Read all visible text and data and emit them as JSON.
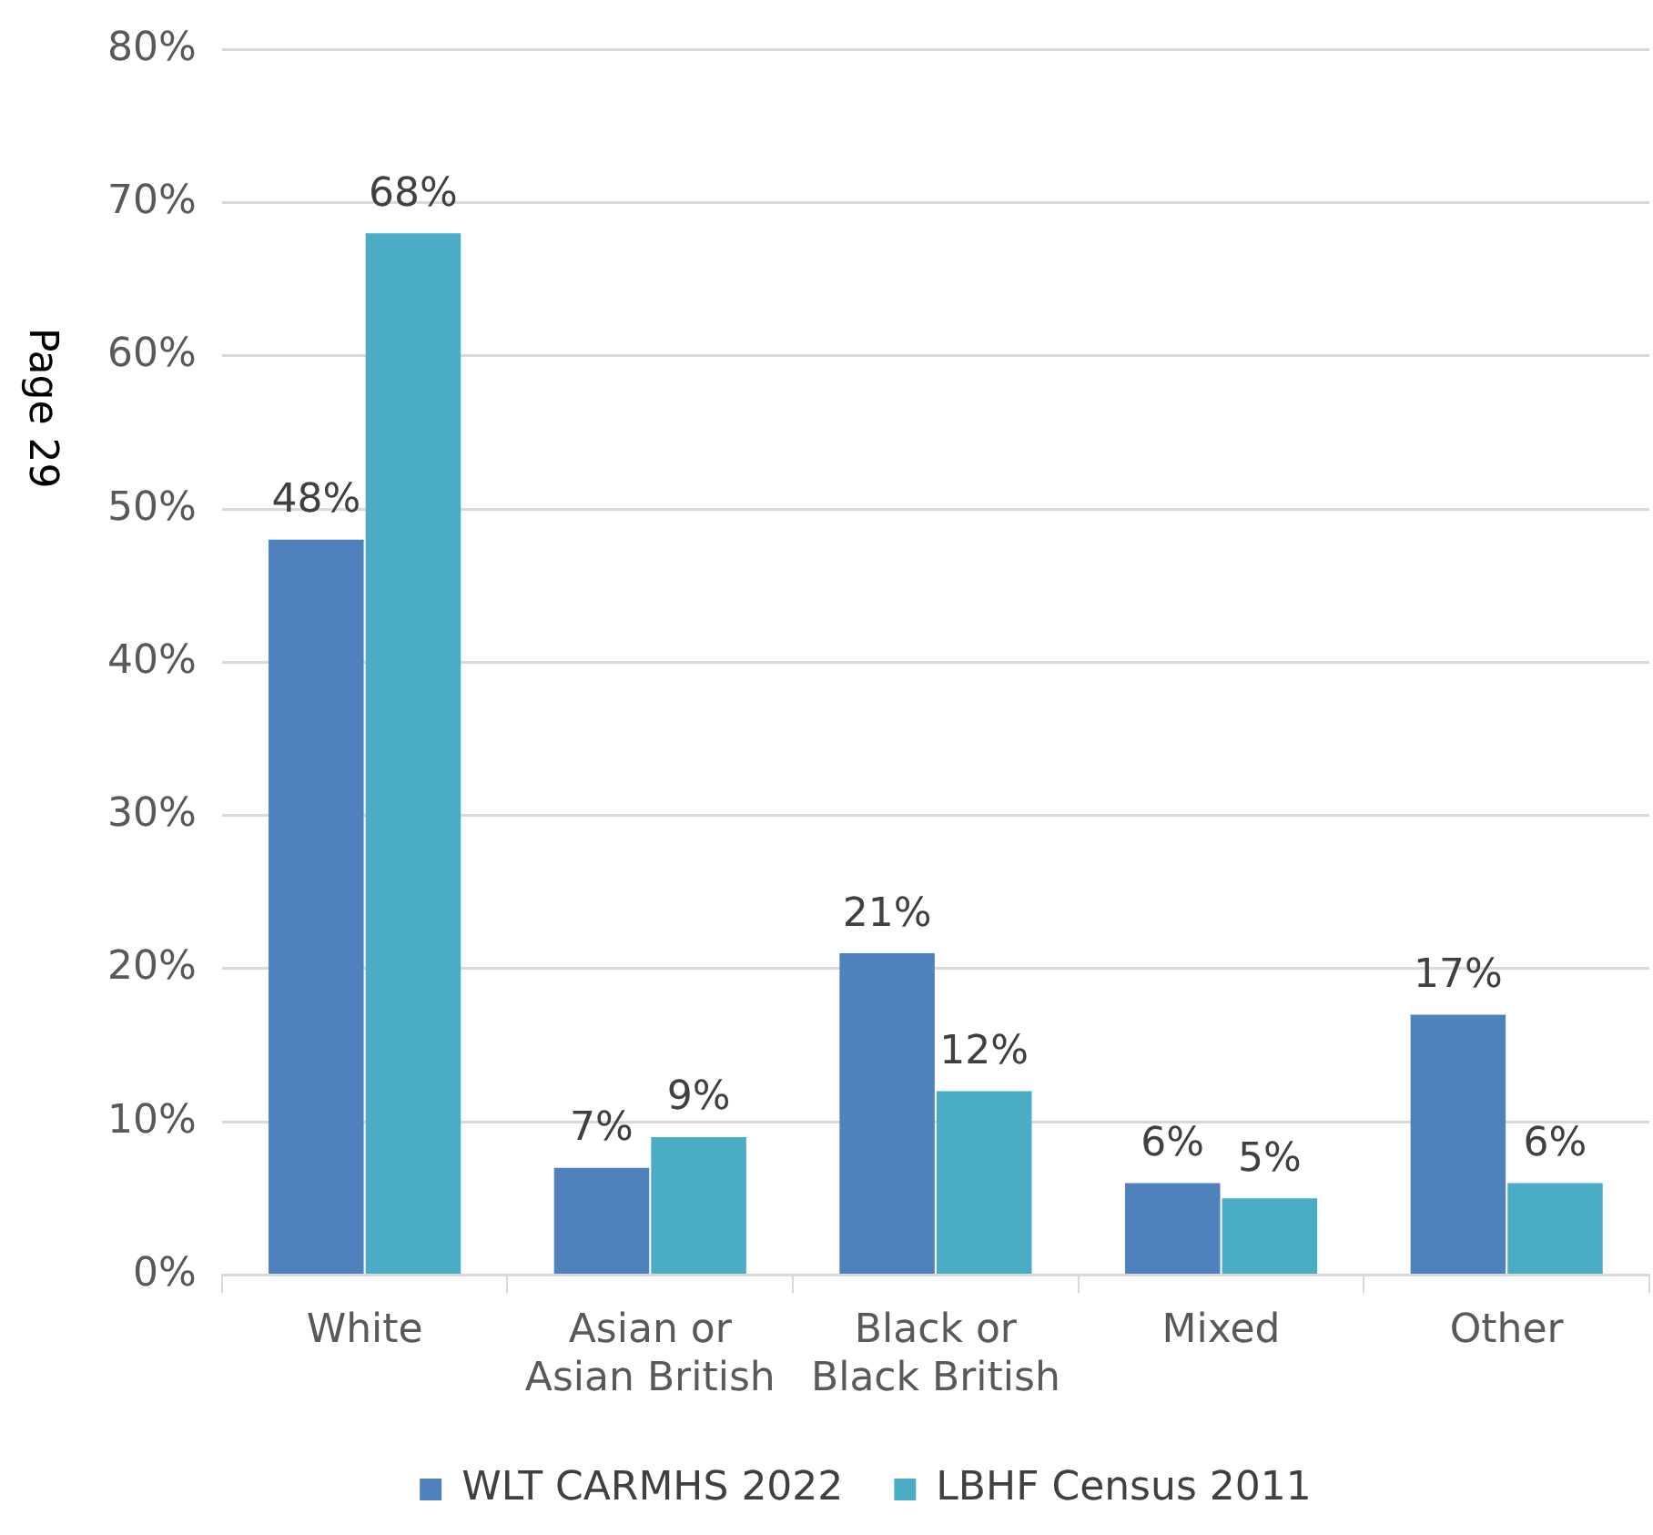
{
  "chart_data": {
    "type": "bar",
    "categories": [
      "White",
      "Asian or Asian British",
      "Black or Black British",
      "Mixed",
      "Other"
    ],
    "series": [
      {
        "name": "WLT CARMHS 2022",
        "color": "#4f81bd",
        "values": [
          48,
          7,
          21,
          6,
          17
        ],
        "value_labels": [
          "48%",
          "7%",
          "21%",
          "6%",
          "17%"
        ]
      },
      {
        "name": "LBHF Census 2011",
        "color": "#4bacc6",
        "values": [
          68,
          9,
          12,
          5,
          6
        ],
        "value_labels": [
          "68%",
          "9%",
          "12%",
          "5%",
          "6%"
        ]
      }
    ],
    "ylim": [
      0,
      80
    ],
    "yticks": [
      {
        "value": 0,
        "label": "0%"
      },
      {
        "value": 10,
        "label": "10%"
      },
      {
        "value": 20,
        "label": "20%"
      },
      {
        "value": 30,
        "label": "30%"
      },
      {
        "value": 40,
        "label": "40%"
      },
      {
        "value": 50,
        "label": "50%"
      },
      {
        "value": 60,
        "label": "60%"
      },
      {
        "value": 70,
        "label": "70%"
      },
      {
        "value": 80,
        "label": "80%"
      }
    ],
    "grid": "y",
    "legend": "bottom",
    "annotations": [
      "Page 29"
    ]
  }
}
